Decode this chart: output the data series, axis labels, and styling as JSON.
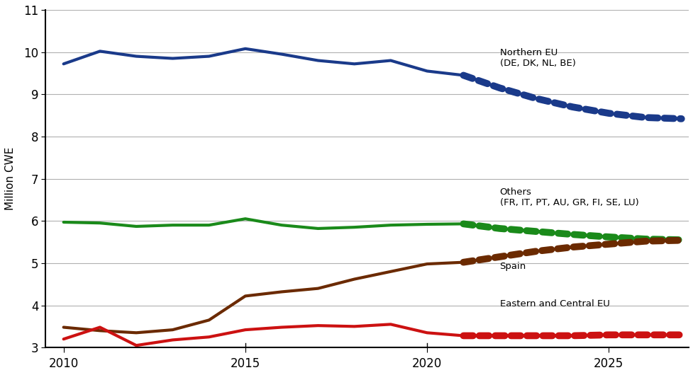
{
  "title": "",
  "ylabel": "Million CWE",
  "ylim": [
    3,
    11
  ],
  "yticks": [
    3,
    4,
    5,
    6,
    7,
    8,
    9,
    10,
    11
  ],
  "xlim": [
    2009.5,
    2027.2
  ],
  "xticks": [
    2010,
    2015,
    2020,
    2025
  ],
  "background_color": "#ffffff",
  "northern_eu": {
    "label_line1": "Northern EU",
    "label_line2": "(DE, DK, NL, BE)",
    "color": "#1a3a8a",
    "solid_x": [
      2010,
      2011,
      2012,
      2013,
      2014,
      2015,
      2016,
      2017,
      2018,
      2019,
      2020,
      2021
    ],
    "solid_y": [
      9.72,
      10.02,
      9.9,
      9.85,
      9.9,
      10.08,
      9.95,
      9.8,
      9.72,
      9.8,
      9.55,
      9.45
    ],
    "dash_x": [
      2021,
      2022,
      2023,
      2024,
      2025,
      2026,
      2027
    ],
    "dash_y": [
      9.45,
      9.15,
      8.9,
      8.7,
      8.55,
      8.45,
      8.42
    ],
    "ann_x": 2022.0,
    "ann_y": 9.62,
    "ann_ha": "left"
  },
  "others": {
    "label_line1": "Others",
    "label_line2": "(FR, IT, PT, AU, GR, FI, SE, LU)",
    "color": "#1a8a1a",
    "solid_x": [
      2010,
      2011,
      2012,
      2013,
      2014,
      2015,
      2016,
      2017,
      2018,
      2019,
      2020,
      2021
    ],
    "solid_y": [
      5.97,
      5.95,
      5.87,
      5.9,
      5.9,
      6.05,
      5.9,
      5.82,
      5.85,
      5.9,
      5.92,
      5.93
    ],
    "dash_x": [
      2021,
      2022,
      2023,
      2024,
      2025,
      2026,
      2027
    ],
    "dash_y": [
      5.93,
      5.82,
      5.75,
      5.68,
      5.62,
      5.57,
      5.55
    ],
    "ann_x": 2022.0,
    "ann_y": 6.32,
    "ann_ha": "left"
  },
  "spain": {
    "label_line1": "Spain",
    "label_line2": "",
    "color": "#6b2a00",
    "solid_x": [
      2010,
      2011,
      2012,
      2013,
      2014,
      2015,
      2016,
      2017,
      2018,
      2019,
      2020,
      2021
    ],
    "solid_y": [
      3.48,
      3.4,
      3.35,
      3.42,
      3.65,
      4.22,
      4.32,
      4.4,
      4.62,
      4.8,
      4.98,
      5.02
    ],
    "dash_x": [
      2021,
      2022,
      2023,
      2024,
      2025,
      2026,
      2027
    ],
    "dash_y": [
      5.02,
      5.15,
      5.28,
      5.38,
      5.45,
      5.52,
      5.54
    ],
    "ann_x": 2022.0,
    "ann_y": 4.82,
    "ann_ha": "left"
  },
  "eastern": {
    "label_line1": "Eastern and Central EU",
    "label_line2": "",
    "color": "#cc1111",
    "solid_x": [
      2010,
      2011,
      2012,
      2013,
      2014,
      2015,
      2016,
      2017,
      2018,
      2019,
      2020,
      2021
    ],
    "solid_y": [
      3.2,
      3.48,
      3.05,
      3.18,
      3.25,
      3.42,
      3.48,
      3.52,
      3.5,
      3.55,
      3.35,
      3.28
    ],
    "dash_x": [
      2021,
      2022,
      2023,
      2024,
      2025,
      2026,
      2027
    ],
    "dash_y": [
      3.28,
      3.28,
      3.28,
      3.28,
      3.3,
      3.3,
      3.3
    ],
    "ann_x": 2022.0,
    "ann_y": 3.92,
    "ann_ha": "left"
  }
}
